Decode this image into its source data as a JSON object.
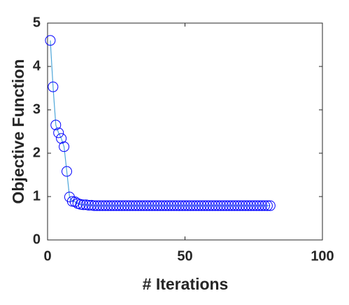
{
  "chart_data": {
    "type": "line",
    "xlabel": "# Iterations",
    "ylabel": "Objective Function",
    "x": [
      1,
      2,
      3,
      4,
      5,
      6,
      7,
      8,
      9,
      10,
      11,
      12,
      13,
      14,
      15,
      16,
      17,
      18,
      19,
      20,
      21,
      22,
      23,
      24,
      25,
      26,
      27,
      28,
      29,
      30,
      31,
      32,
      33,
      34,
      35,
      36,
      37,
      38,
      39,
      40,
      41,
      42,
      43,
      44,
      45,
      46,
      47,
      48,
      49,
      50,
      51,
      52,
      53,
      54,
      55,
      56,
      57,
      58,
      59,
      60,
      61,
      62,
      63,
      64,
      65,
      66,
      67,
      68,
      69,
      70,
      71,
      72,
      73,
      74,
      75,
      76,
      77,
      78,
      79,
      80,
      81
    ],
    "series": [
      {
        "line_color": "#4da6d9",
        "marker_color": "#0000ff",
        "values": [
          4.6,
          3.53,
          2.65,
          2.47,
          2.34,
          2.15,
          1.58,
          0.99,
          0.89,
          0.88,
          0.84,
          0.82,
          0.81,
          0.81,
          0.8,
          0.8,
          0.79,
          0.79,
          0.79,
          0.79,
          0.79,
          0.79,
          0.79,
          0.79,
          0.79,
          0.79,
          0.79,
          0.79,
          0.79,
          0.79,
          0.79,
          0.79,
          0.79,
          0.79,
          0.79,
          0.79,
          0.79,
          0.79,
          0.79,
          0.79,
          0.79,
          0.79,
          0.79,
          0.79,
          0.79,
          0.79,
          0.79,
          0.79,
          0.79,
          0.79,
          0.79,
          0.79,
          0.79,
          0.79,
          0.79,
          0.79,
          0.79,
          0.79,
          0.79,
          0.79,
          0.79,
          0.79,
          0.79,
          0.79,
          0.79,
          0.79,
          0.79,
          0.79,
          0.79,
          0.79,
          0.79,
          0.79,
          0.79,
          0.79,
          0.79,
          0.79,
          0.79,
          0.79,
          0.79,
          0.79,
          0.79
        ]
      }
    ],
    "xlim": [
      0,
      100
    ],
    "xticks": [
      0,
      50,
      100
    ],
    "ylim": [
      0,
      5
    ],
    "yticks": [
      0,
      1,
      2,
      3,
      4,
      5
    ],
    "grid": false
  }
}
